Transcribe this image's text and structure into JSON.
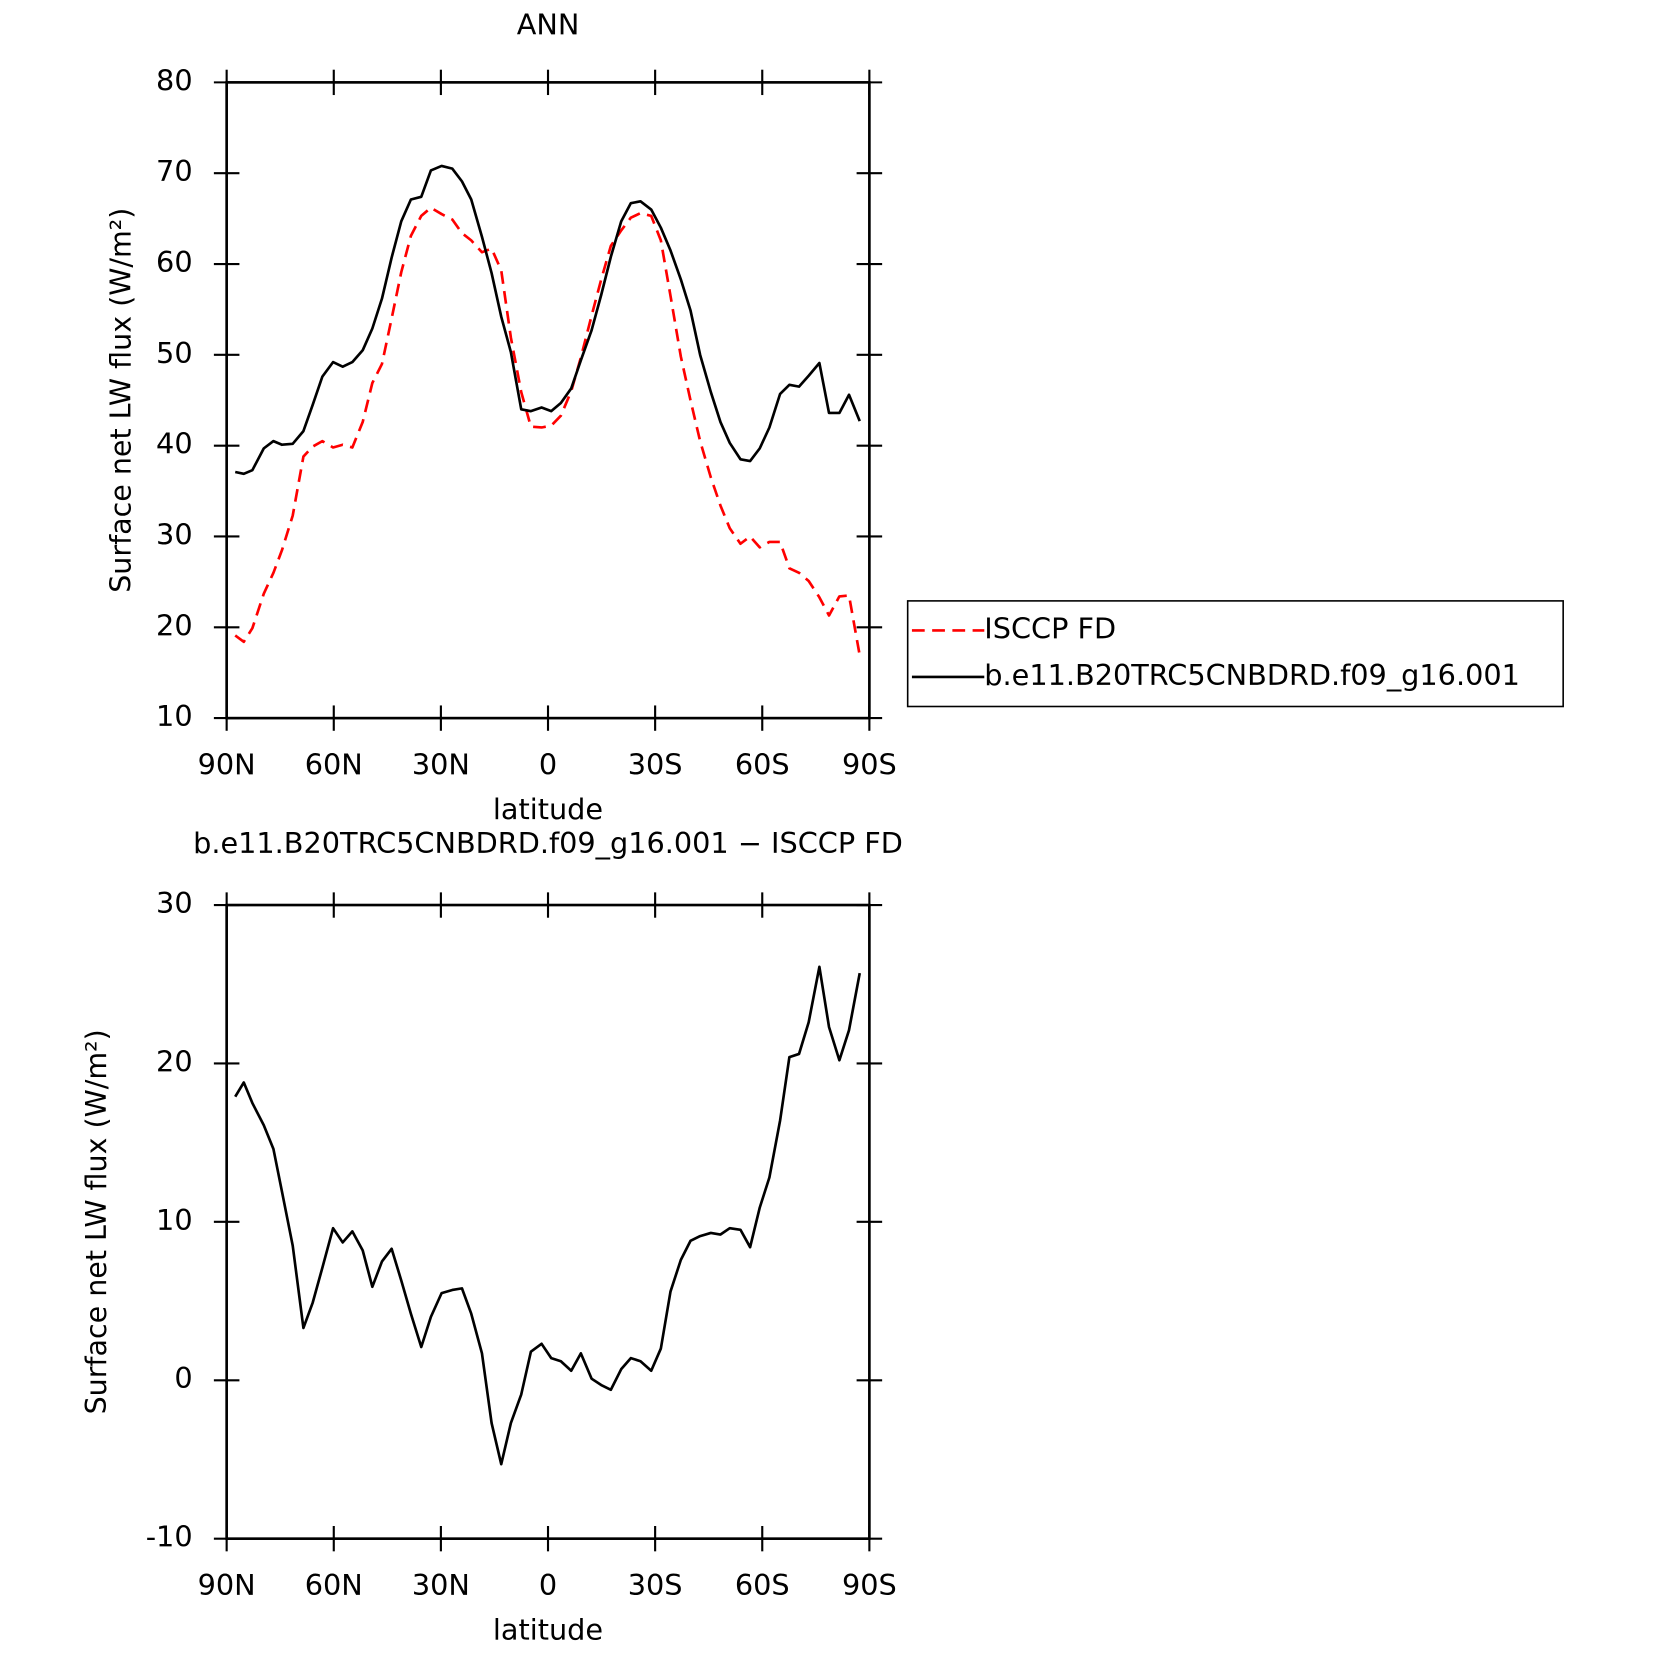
{
  "chart_data": [
    {
      "type": "line",
      "title": "ANN",
      "xlabel": "latitude",
      "ylabel": "Surface net LW flux (W/m²)",
      "x": [
        87.6,
        85.2,
        82.8,
        79.6,
        76.9,
        74.5,
        71.5,
        68.5,
        65.9,
        63.2,
        60.2,
        57.5,
        54.8,
        51.9,
        49.2,
        46.5,
        43.8,
        41.1,
        38.4,
        35.5,
        32.8,
        29.8,
        26.8,
        24.1,
        21.5,
        18.5,
        15.8,
        13.1,
        10.4,
        7.5,
        4.8,
        1.8,
        -0.9,
        -3.6,
        -6.5,
        -9.2,
        -12.2,
        -14.9,
        -17.6,
        -20.5,
        -23.2,
        -25.9,
        -28.9,
        -31.6,
        -34.3,
        -37.2,
        -39.9,
        -42.6,
        -45.6,
        -48.3,
        -50.9,
        -53.9,
        -56.6,
        -59.3,
        -62.0,
        -65.0,
        -67.6,
        -70.3,
        -73.0,
        -76.0,
        -78.7,
        -81.6,
        -84.3,
        -87.3
      ],
      "series": [
        {
          "name": "ISCCP FD",
          "color": "#ff0000",
          "dash": "dashed",
          "values": [
            19.1,
            18.4,
            19.9,
            23.7,
            26.0,
            28.5,
            32.3,
            38.8,
            39.9,
            40.5,
            39.8,
            40.1,
            39.8,
            42.6,
            46.9,
            49.0,
            54.0,
            59.1,
            63.1,
            65.3,
            66.2,
            65.5,
            64.9,
            63.4,
            62.6,
            61.3,
            61.7,
            59.3,
            51.9,
            45.9,
            42.1,
            42.0,
            42.2,
            43.3,
            46.0,
            49.7,
            54.3,
            58.3,
            62.0,
            63.7,
            65.1,
            65.6,
            65.3,
            62.6,
            56.5,
            49.8,
            45.0,
            40.5,
            36.5,
            33.4,
            30.9,
            29.2,
            30.0,
            28.8,
            29.4,
            29.4,
            26.5,
            26.0,
            25.1,
            23.3,
            21.3,
            23.4,
            23.5,
            16.9
          ]
        },
        {
          "name": "b.e11.B20TRC5CNBDRD.f09_g16.001",
          "color": "#000000",
          "dash": "solid",
          "values": [
            37.1,
            36.9,
            37.3,
            39.7,
            40.5,
            40.1,
            40.2,
            41.6,
            44.5,
            47.6,
            49.2,
            48.7,
            49.2,
            50.5,
            52.9,
            56.2,
            60.7,
            64.7,
            67.1,
            67.4,
            70.3,
            70.8,
            70.5,
            69.1,
            67.1,
            63.0,
            59.0,
            54.2,
            50.3,
            44.0,
            43.8,
            44.2,
            43.8,
            44.7,
            46.3,
            49.4,
            52.7,
            56.6,
            60.8,
            64.7,
            66.7,
            66.9,
            66.0,
            64.0,
            61.5,
            58.3,
            54.9,
            50.0,
            45.9,
            42.6,
            40.3,
            38.5,
            38.3,
            39.7,
            42.0,
            45.7,
            46.7,
            46.5,
            47.7,
            49.1,
            43.6,
            43.6,
            45.6,
            42.7
          ]
        }
      ],
      "xlim": [
        90,
        -90
      ],
      "xticks": [
        {
          "value": 90,
          "label": "90N"
        },
        {
          "value": 60,
          "label": "60N"
        },
        {
          "value": 30,
          "label": "30N"
        },
        0,
        {
          "value": -30,
          "label": "30S"
        },
        {
          "value": -60,
          "label": "60S"
        },
        {
          "value": -90,
          "label": "90S"
        }
      ],
      "ylim": [
        10,
        80
      ],
      "yticks": [
        10,
        20,
        30,
        40,
        50,
        60,
        70,
        80
      ],
      "grid": false,
      "legend": "right"
    },
    {
      "type": "line",
      "title": "b.e11.B20TRC5CNBDRD.f09_g16.001 − ISCCP FD",
      "xlabel": "latitude",
      "ylabel": "Surface net LW flux (W/m²)",
      "x": [
        87.6,
        85.2,
        82.8,
        79.6,
        76.9,
        74.5,
        71.5,
        68.5,
        65.9,
        63.2,
        60.2,
        57.5,
        54.8,
        51.9,
        49.2,
        46.5,
        43.8,
        41.1,
        38.4,
        35.5,
        32.8,
        29.8,
        26.8,
        24.1,
        21.5,
        18.5,
        15.8,
        13.1,
        10.4,
        7.5,
        4.8,
        1.8,
        -0.9,
        -3.6,
        -6.5,
        -9.2,
        -12.2,
        -14.9,
        -17.6,
        -20.5,
        -23.2,
        -25.9,
        -28.9,
        -31.6,
        -34.3,
        -37.2,
        -39.9,
        -42.6,
        -45.6,
        -48.3,
        -50.9,
        -53.9,
        -56.6,
        -59.3,
        -62.0,
        -65.0,
        -67.6,
        -70.3,
        -73.0,
        -76.0,
        -78.7,
        -81.6,
        -84.3,
        -87.3
      ],
      "series": [
        {
          "color": "#000000",
          "dash": "solid",
          "values": [
            17.9,
            18.8,
            17.5,
            16.1,
            14.6,
            11.9,
            8.5,
            3.3,
            4.9,
            7.1,
            9.6,
            8.7,
            9.4,
            8.2,
            5.9,
            7.5,
            8.3,
            6.3,
            4.2,
            2.1,
            4.0,
            5.5,
            5.7,
            5.8,
            4.2,
            1.7,
            -2.7,
            -5.3,
            -2.7,
            -0.9,
            1.8,
            2.3,
            1.4,
            1.2,
            0.6,
            1.7,
            0.1,
            -0.3,
            -0.6,
            0.7,
            1.4,
            1.2,
            0.6,
            2.0,
            5.6,
            7.6,
            8.8,
            9.1,
            9.3,
            9.2,
            9.6,
            9.5,
            8.4,
            10.9,
            12.8,
            16.4,
            20.4,
            20.6,
            22.6,
            26.1,
            22.3,
            20.2,
            22.1,
            25.7
          ]
        }
      ],
      "xlim": [
        90,
        -90
      ],
      "xticks": [
        {
          "value": 90,
          "label": "90N"
        },
        {
          "value": 60,
          "label": "60N"
        },
        {
          "value": 30,
          "label": "30N"
        },
        0,
        {
          "value": -30,
          "label": "30S"
        },
        {
          "value": -60,
          "label": "60S"
        },
        {
          "value": -90,
          "label": "90S"
        }
      ],
      "ylim": [
        -10,
        30
      ],
      "yticks": [
        -10,
        0,
        10,
        20,
        30
      ],
      "grid": false
    }
  ]
}
